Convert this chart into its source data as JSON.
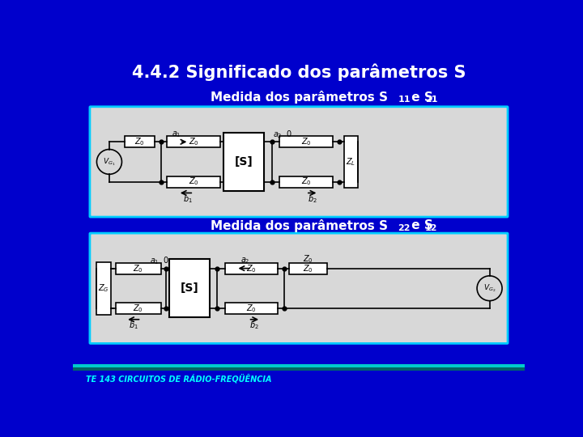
{
  "bg_color": "#0000cc",
  "title": "4.4.2 Significado dos parâmetros S",
  "title_color": "#ffffff",
  "title_fontsize": 15,
  "sub1_text": "Medida dos parâmetros S",
  "sub1_sub1": "11",
  "sub1_mid": " e S",
  "sub1_sub2": "21",
  "sub2_text": "Medida dos parâmetros S",
  "sub2_sub1": "22",
  "sub2_mid": " e S",
  "sub2_sub2": "12",
  "subtitle_color": "#ffffff",
  "subtitle_fontsize": 11,
  "circuit_bg": "#d8d8d8",
  "circuit_border": "#00ccff",
  "footer_text": "TE 143 CIRCUITOS DE RÁDIO-FREQÜÊNCIA",
  "footer_color": "#00ffff",
  "footer_fontsize": 7,
  "bar_color1": "#00cccc",
  "bar_color2": "#006666",
  "wire_color": "#000000",
  "box_fill": "#ffffff",
  "circuit_label_color": "#000000"
}
